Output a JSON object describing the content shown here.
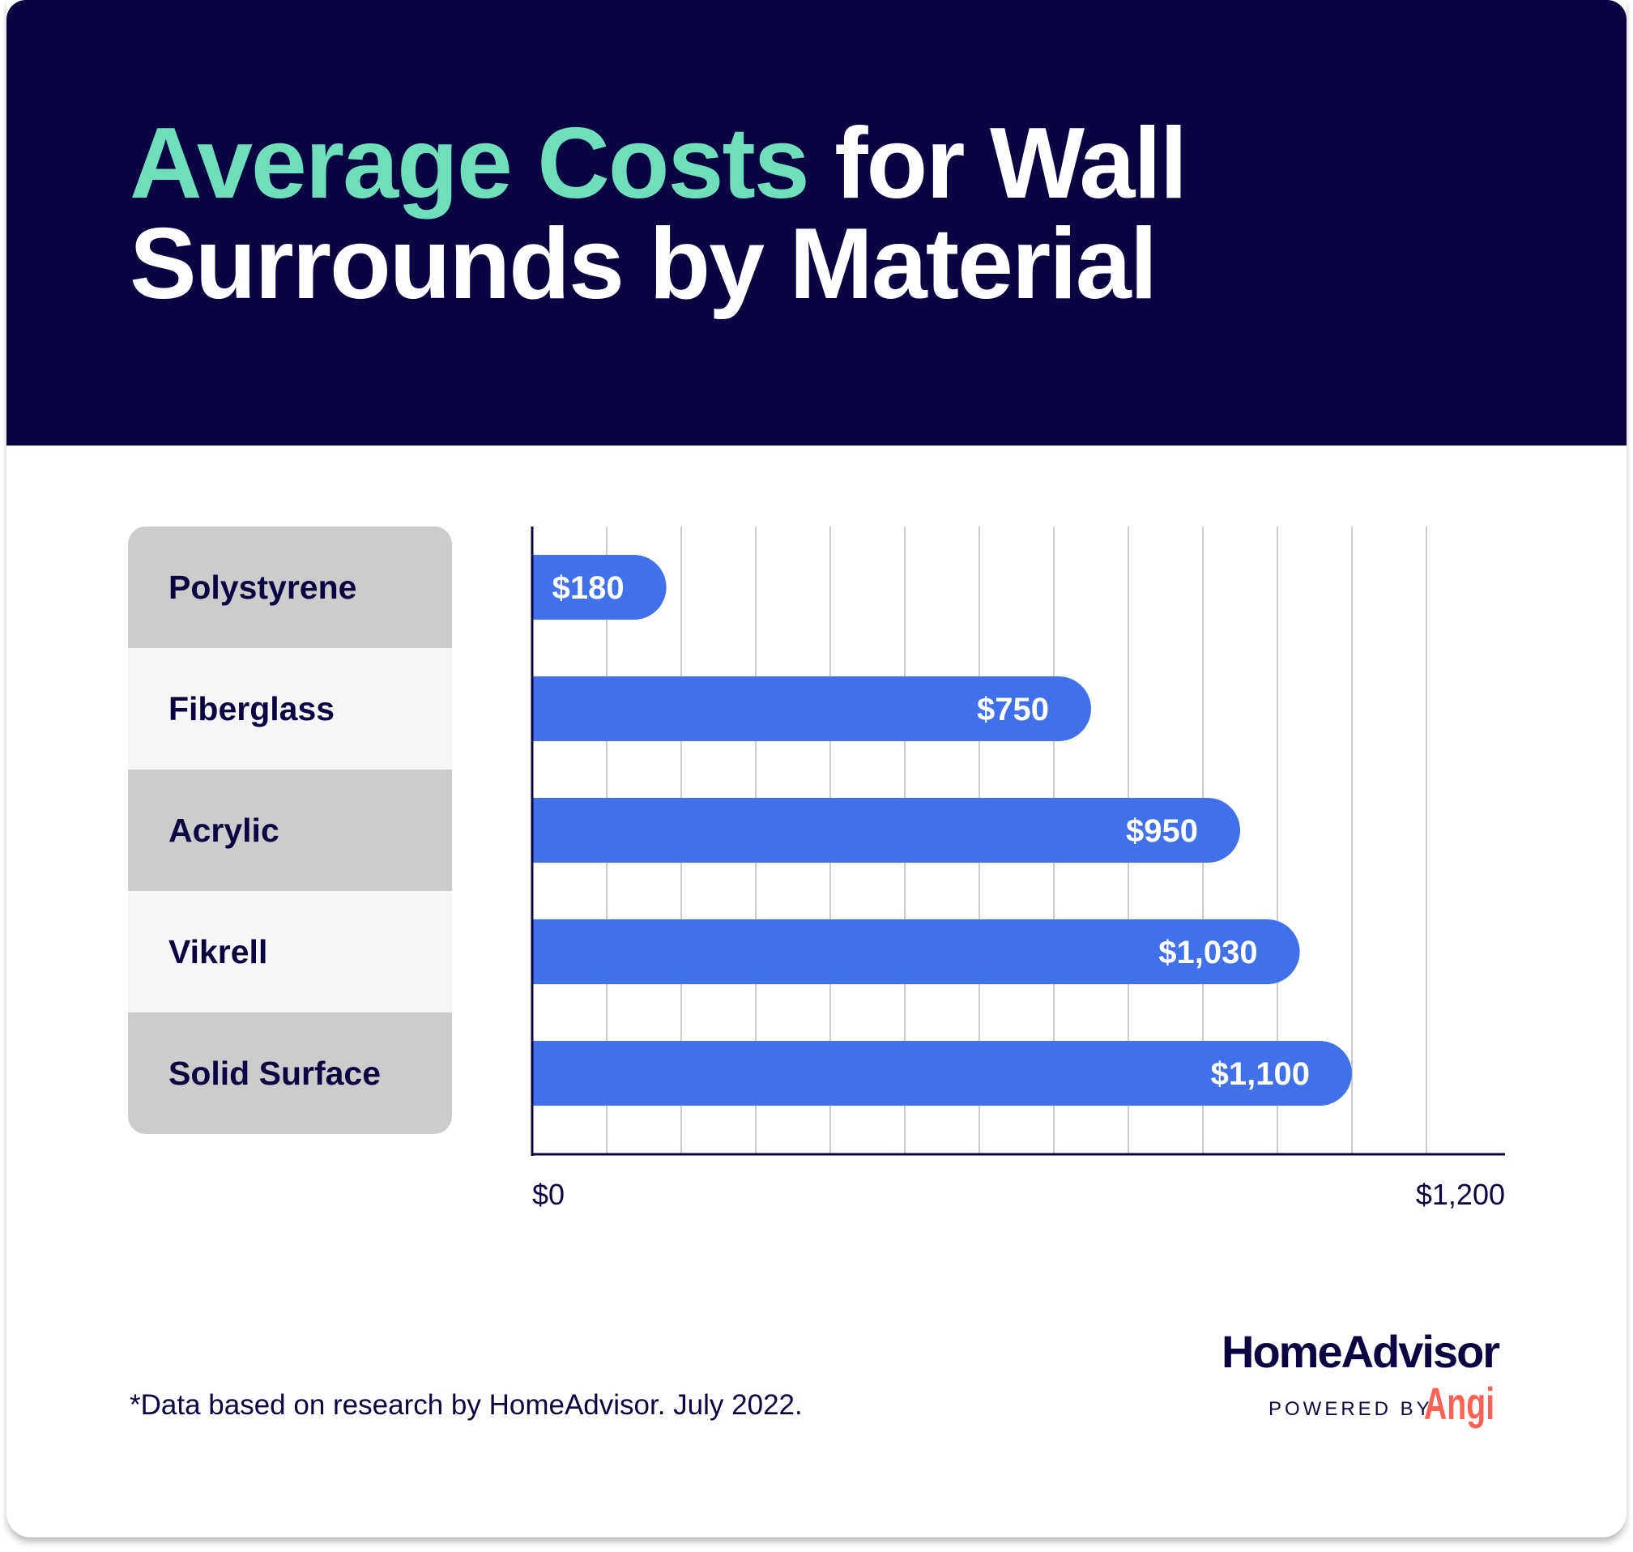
{
  "title": {
    "accent": "Average Costs",
    "rest": " for Wall Surrounds by Material"
  },
  "chart_data": {
    "type": "bar",
    "orientation": "horizontal",
    "title": "Average Costs for Wall Surrounds by Material",
    "categories": [
      "Polystyrene",
      "Fiberglass",
      "Acrylic",
      "Vikrell",
      "Solid Surface"
    ],
    "values": [
      180,
      750,
      950,
      1030,
      1100
    ],
    "value_labels": [
      "$180",
      "$750",
      "$950",
      "$1,030",
      "$1,100"
    ],
    "xlim": [
      0,
      1200
    ],
    "tick_labels": [
      "$0",
      "$1,200"
    ],
    "grid_step": 100,
    "grid": true,
    "bar_color": "#4070ea"
  },
  "footnote": "*Data based on research by HomeAdvisor. July 2022.",
  "logo": {
    "name": "HomeAdvisor",
    "powered": "POWERED BY",
    "brand": "Angi"
  }
}
